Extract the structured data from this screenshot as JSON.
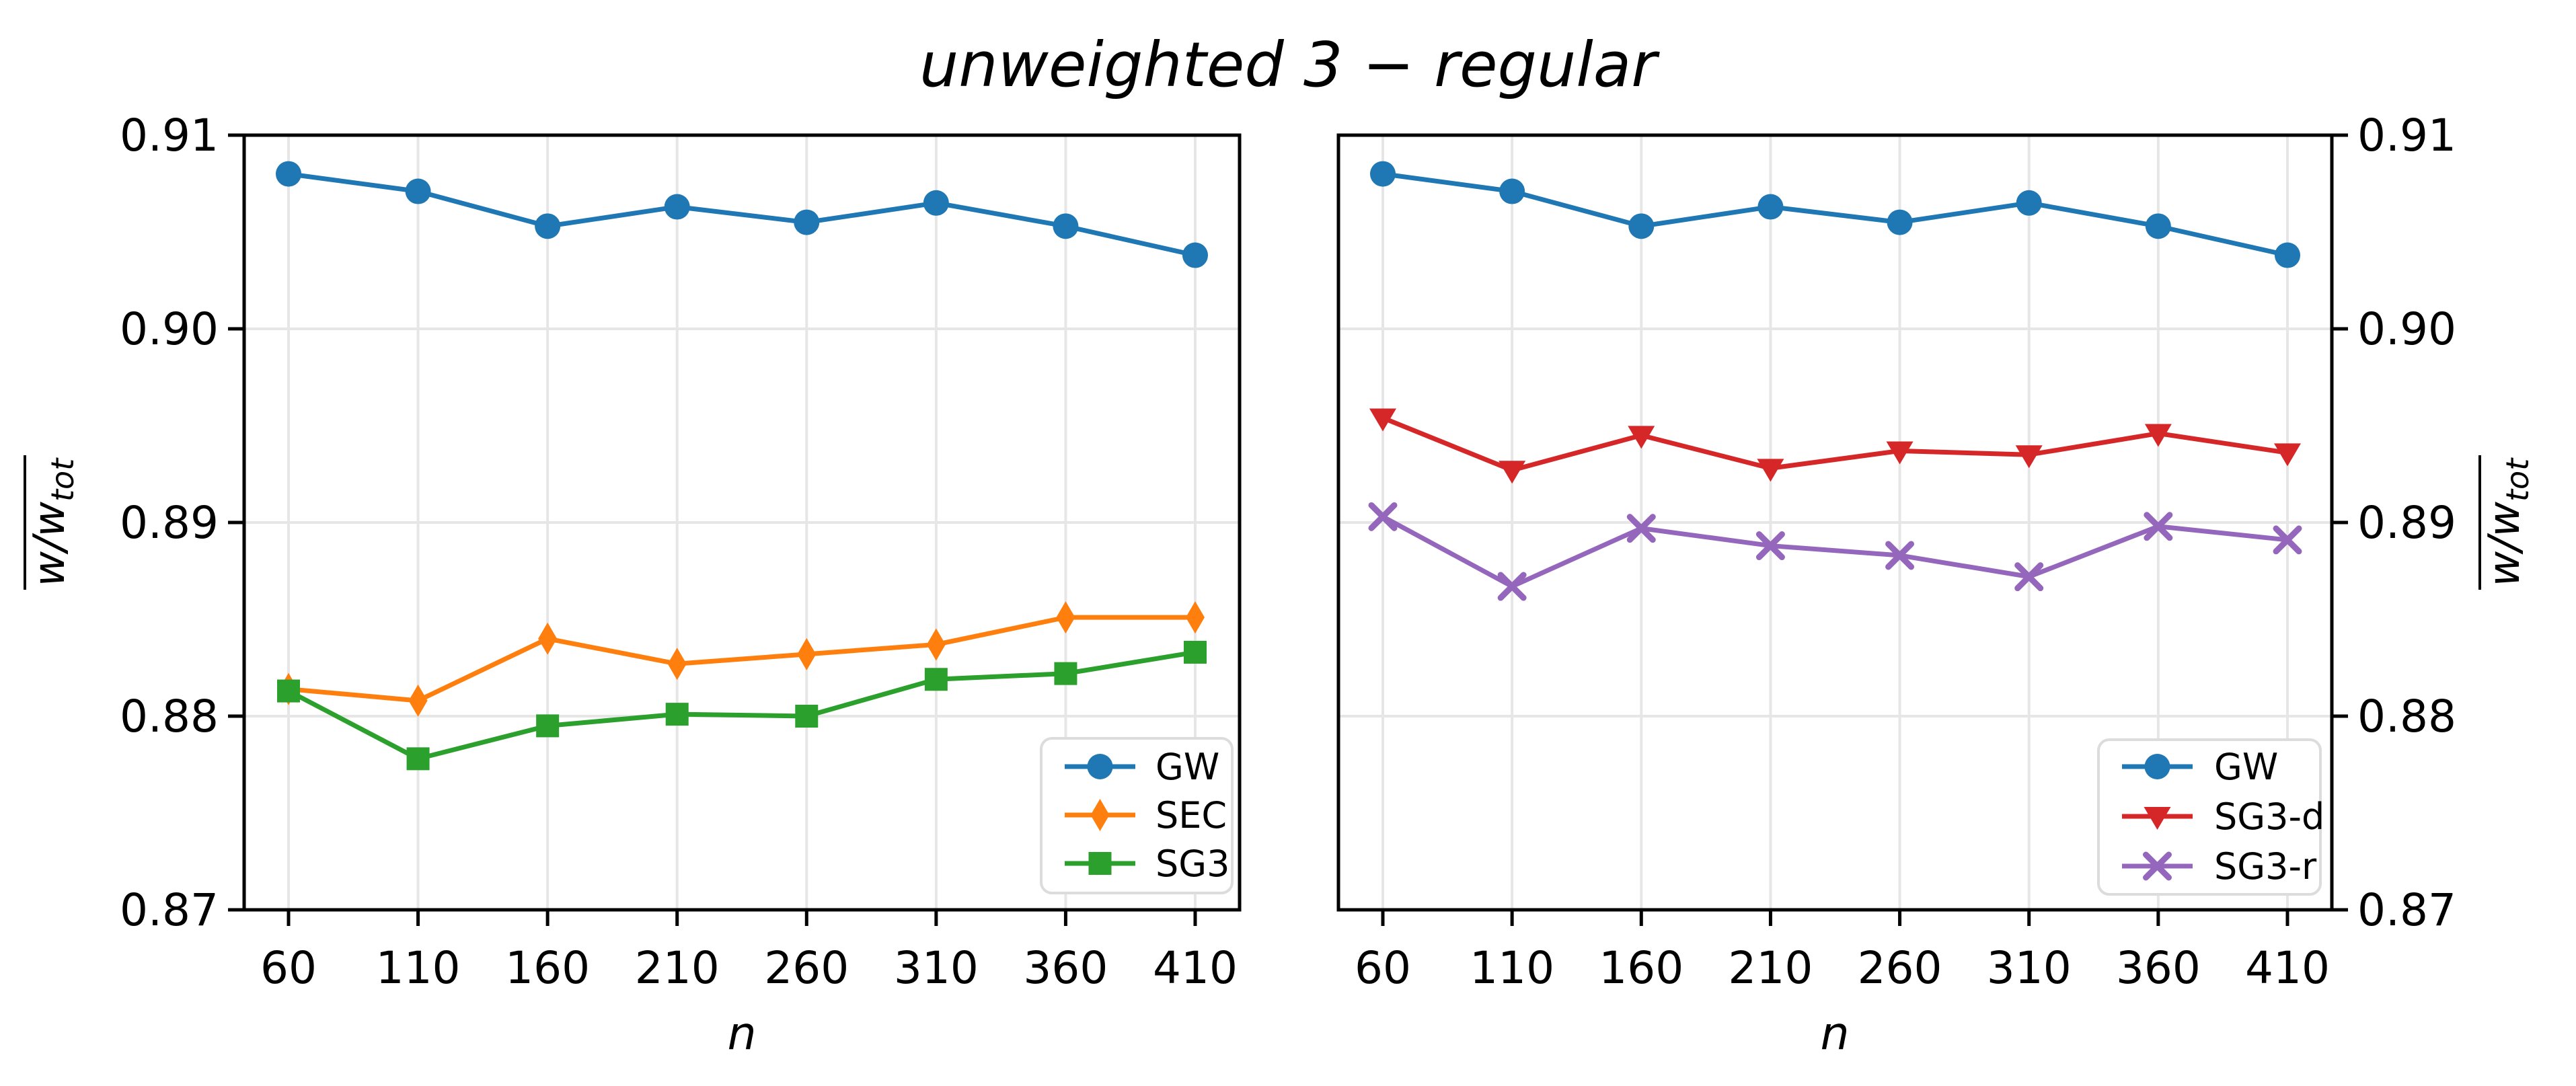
{
  "figure": {
    "title": "unweighted 3 − regular",
    "background": "#ffffff"
  },
  "axes": {
    "xlabel": "n",
    "ylabel_base": "w/w",
    "ylabel_sub": "tot",
    "xticks": [
      60,
      110,
      160,
      210,
      260,
      310,
      360,
      410
    ],
    "xticklabels": [
      "60",
      "110",
      "160",
      "210",
      "260",
      "310",
      "360",
      "410"
    ],
    "yticks": [
      0.87,
      0.88,
      0.89,
      0.9,
      0.91
    ],
    "yticklabels": [
      "0.87",
      "0.88",
      "0.89",
      "0.90",
      "0.91"
    ],
    "ylim": [
      0.87,
      0.91
    ],
    "grid": true,
    "grid_color": "#e6e6e6"
  },
  "chart_data": [
    {
      "type": "line",
      "panel": "left",
      "x": [
        60,
        110,
        160,
        210,
        260,
        310,
        360,
        410
      ],
      "xlabel": "n",
      "ylabel": "w/w_tot (overline)",
      "ylim": [
        0.87,
        0.91
      ],
      "legend_position": "lower right",
      "series": [
        {
          "name": "GW",
          "color": "#1f77b4",
          "marker": "circle",
          "values": [
            0.908,
            0.9071,
            0.9053,
            0.9063,
            0.9055,
            0.9065,
            0.9053,
            0.9038
          ]
        },
        {
          "name": "SEC",
          "color": "#ff7f0e",
          "marker": "diamond",
          "values": [
            0.8814,
            0.8808,
            0.884,
            0.8827,
            0.8832,
            0.8837,
            0.8851,
            0.8851
          ]
        },
        {
          "name": "SG3",
          "color": "#2ca02c",
          "marker": "square",
          "values": [
            0.8813,
            0.8778,
            0.8795,
            0.8801,
            0.88,
            0.8819,
            0.8822,
            0.8833
          ]
        }
      ]
    },
    {
      "type": "line",
      "panel": "right",
      "x": [
        60,
        110,
        160,
        210,
        260,
        310,
        360,
        410
      ],
      "xlabel": "n",
      "ylabel": "w/w_tot (overline)",
      "ylim": [
        0.87,
        0.91
      ],
      "legend_position": "lower right",
      "series": [
        {
          "name": "GW",
          "color": "#1f77b4",
          "marker": "circle",
          "values": [
            0.908,
            0.9071,
            0.9053,
            0.9063,
            0.9055,
            0.9065,
            0.9053,
            0.9038
          ]
        },
        {
          "name": "SG3-d",
          "color": "#d62728",
          "marker": "triangle-down",
          "values": [
            0.8954,
            0.8927,
            0.8945,
            0.8928,
            0.8937,
            0.8935,
            0.8946,
            0.8936
          ]
        },
        {
          "name": "SG3-r",
          "color": "#9467bd",
          "marker": "x",
          "values": [
            0.8903,
            0.8867,
            0.8897,
            0.8888,
            0.8883,
            0.8872,
            0.8898,
            0.8891
          ]
        }
      ]
    }
  ]
}
